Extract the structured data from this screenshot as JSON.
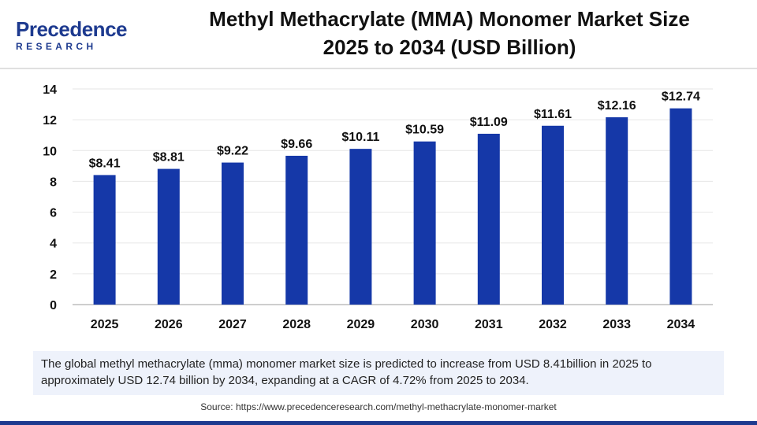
{
  "header": {
    "logo_name": "Precedence",
    "logo_sub": "RESEARCH",
    "title_line1": "Methyl Methacrylate (MMA) Monomer Market Size",
    "title_line2": "2025 to 2034 (USD Billion)"
  },
  "chart_data": {
    "type": "bar",
    "title": "Methyl Methacrylate (MMA) Monomer Market Size 2025 to 2034 (USD Billion)",
    "categories": [
      "2025",
      "2026",
      "2027",
      "2028",
      "2029",
      "2030",
      "2031",
      "2032",
      "2033",
      "2034"
    ],
    "values": [
      8.41,
      8.81,
      9.22,
      9.66,
      10.11,
      10.59,
      11.09,
      11.61,
      12.16,
      12.74
    ],
    "value_labels": [
      "$8.41",
      "$8.81",
      "$9.22",
      "$9.66",
      "$10.11",
      "$10.59",
      "$11.09",
      "$11.61",
      "$12.16",
      "$12.74"
    ],
    "yticks": [
      "0",
      "2",
      "4",
      "6",
      "8",
      "10",
      "12",
      "14"
    ],
    "ylim": [
      0,
      14
    ],
    "xlabel": "",
    "ylabel": "",
    "grid": true,
    "bar_color": "#1538a8"
  },
  "footer": {
    "summary": "The global methyl methacrylate (mma) monomer market size is predicted to increase from USD 8.41billion in 2025 to approximately USD 12.74 billion by 2034, expanding at a CAGR of 4.72% from 2025 to 2034.",
    "source": "Source: https://www.precedenceresearch.com/methyl-methacrylate-monomer-market"
  },
  "colors": {
    "brand": "#1d3a8f",
    "bar": "#1538a8",
    "summary_bg": "#eef2fb"
  }
}
